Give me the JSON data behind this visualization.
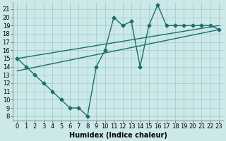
{
  "xlabel": "Humidex (Indice chaleur)",
  "ylabel": "",
  "bg_color": "#cce8e8",
  "line_color": "#1a6e6e",
  "xlim": [
    -0.5,
    23.5
  ],
  "ylim": [
    7.5,
    21.8
  ],
  "xticks": [
    0,
    1,
    2,
    3,
    4,
    5,
    6,
    7,
    8,
    9,
    10,
    11,
    12,
    13,
    14,
    15,
    16,
    17,
    18,
    19,
    20,
    21,
    22,
    23
  ],
  "yticks": [
    8,
    9,
    10,
    11,
    12,
    13,
    14,
    15,
    16,
    17,
    18,
    19,
    20,
    21
  ],
  "main_x": [
    0,
    1,
    2,
    3,
    4,
    5,
    6,
    7,
    8,
    9,
    10,
    11,
    12,
    13,
    14,
    15,
    16,
    17,
    18,
    19,
    20,
    21,
    22,
    23
  ],
  "main_y": [
    15,
    14,
    13,
    12,
    11,
    10,
    9,
    9,
    8,
    14,
    16,
    20,
    19,
    19.5,
    14,
    19,
    21.5,
    19,
    19,
    19,
    19,
    19,
    19,
    18.5
  ],
  "trend1_x": [
    0,
    23
  ],
  "trend1_y": [
    15.0,
    19.0
  ],
  "trend2_x": [
    0,
    23
  ],
  "trend2_y": [
    13.5,
    18.5
  ],
  "grid_color": "#99cccc",
  "marker": "D",
  "markersize": 2.5,
  "linewidth": 1.0,
  "fontsize_label": 7,
  "fontsize_tick": 6
}
